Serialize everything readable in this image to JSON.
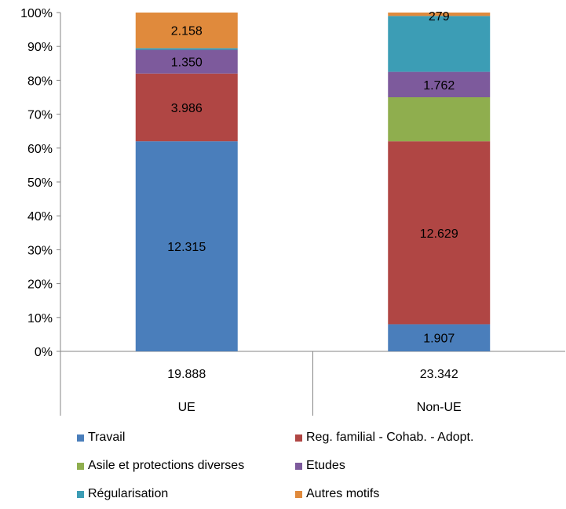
{
  "chart_data": {
    "type": "bar",
    "stacked": "percent",
    "categories": [
      "UE",
      "Non-UE"
    ],
    "totals": [
      "19.888",
      "23.342"
    ],
    "ylim": [
      0,
      100
    ],
    "yticks": [
      "0%",
      "10%",
      "20%",
      "30%",
      "40%",
      "50%",
      "60%",
      "70%",
      "80%",
      "90%",
      "100%"
    ],
    "grid": false,
    "legend_position": "bottom",
    "series": [
      {
        "name": "Travail",
        "color": "#4a7ebb",
        "values": [
          62,
          8
        ],
        "labels": [
          "12.315",
          "1.907"
        ]
      },
      {
        "name": "Reg. familial - Cohab. - Adopt.",
        "color": "#b04644",
        "values": [
          20,
          54
        ],
        "labels": [
          "3.986",
          "12.629"
        ]
      },
      {
        "name": "Asile et protections diverses",
        "color": "#8fae4e",
        "values": [
          0,
          13
        ],
        "labels": [
          "",
          ""
        ]
      },
      {
        "name": "Etudes",
        "color": "#7d5a9c",
        "values": [
          7,
          7.5
        ],
        "labels": [
          "1.350",
          "1.762"
        ]
      },
      {
        "name": "Régularisation",
        "color": "#3c9db5",
        "values": [
          0.5,
          16.5
        ],
        "labels": [
          "",
          ""
        ]
      },
      {
        "name": "Autres motifs",
        "color": "#e08a3c",
        "values": [
          10.5,
          1
        ],
        "labels": [
          "2.158",
          "279"
        ]
      }
    ]
  }
}
